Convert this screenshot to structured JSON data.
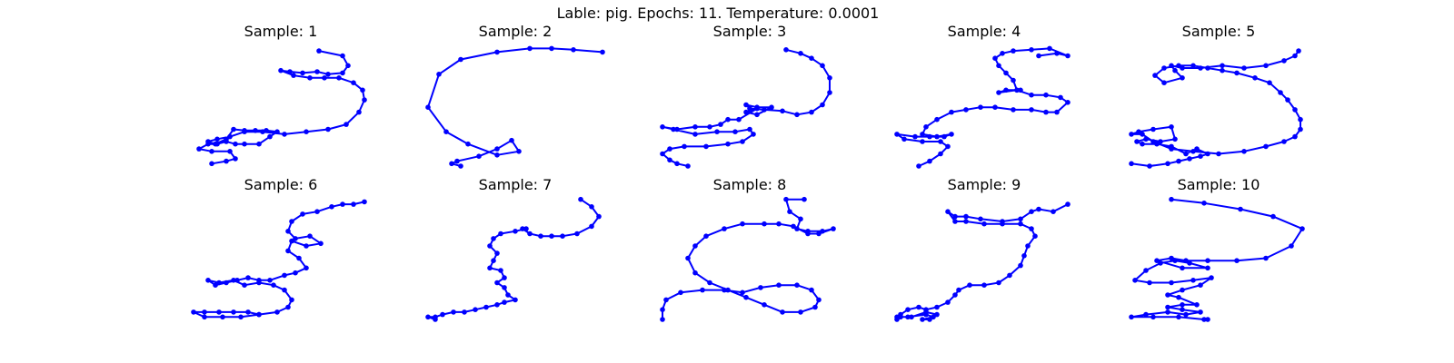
{
  "figure": {
    "title": "Lable: pig. Epochs: 11. Temperature: 0.0001"
  },
  "style": {
    "stroke_color": "#0000ff",
    "marker_color": "#0000ff",
    "background": "#ffffff",
    "axes_visible": false,
    "markers": true
  },
  "chart_data": [
    {
      "type": "line",
      "title": "Sample: 1",
      "xlim": [
        0,
        100
      ],
      "ylim": [
        0,
        100
      ],
      "x": [
        71,
        84,
        87,
        84,
        76,
        70,
        62,
        55,
        50,
        57,
        66,
        74,
        82,
        90,
        95,
        96,
        93,
        86,
        76,
        64,
        52,
        40,
        30,
        22,
        15,
        10,
        14,
        20,
        24,
        30,
        36,
        42,
        48,
        44,
        38,
        30,
        25,
        20,
        15,
        10,
        5,
        12,
        22,
        25,
        20,
        12
      ],
      "y": [
        94,
        90,
        82,
        76,
        75,
        77,
        76,
        77,
        78,
        74,
        72,
        72,
        72,
        68,
        62,
        54,
        44,
        34,
        30,
        28,
        26,
        28,
        28,
        24,
        22,
        20,
        18,
        22,
        30,
        29,
        29,
        29,
        28,
        24,
        18,
        18,
        18,
        20,
        18,
        18,
        14,
        12,
        12,
        6,
        4,
        2
      ]
    },
    {
      "type": "line",
      "title": "Sample: 2",
      "xlim": [
        0,
        100
      ],
      "ylim": [
        0,
        100
      ],
      "x": [
        98,
        82,
        70,
        58,
        40,
        20,
        8,
        2,
        12,
        24,
        40,
        52,
        48,
        40,
        30,
        18,
        15,
        20
      ],
      "y": [
        93,
        95,
        96,
        96,
        93,
        87,
        75,
        48,
        28,
        18,
        9,
        12,
        21,
        14,
        8,
        4,
        2,
        0
      ]
    },
    {
      "type": "line",
      "title": "Sample: 3",
      "xlim": [
        0,
        100
      ],
      "ylim": [
        0,
        100
      ],
      "x": [
        70,
        78,
        84,
        90,
        94,
        94,
        90,
        84,
        76,
        68,
        58,
        50,
        48,
        54,
        62,
        54,
        48,
        54,
        44,
        38,
        34,
        28,
        20,
        10,
        2,
        8,
        20,
        32,
        42,
        50,
        52,
        46,
        38,
        26,
        14,
        6,
        2,
        6,
        10,
        16
      ],
      "y": [
        95,
        92,
        88,
        82,
        72,
        60,
        50,
        44,
        42,
        45,
        46,
        47,
        50,
        48,
        48,
        42,
        44,
        47,
        38,
        38,
        34,
        32,
        32,
        30,
        32,
        30,
        26,
        28,
        28,
        30,
        26,
        20,
        18,
        16,
        16,
        14,
        10,
        5,
        2,
        0
      ]
    },
    {
      "type": "line",
      "title": "Sample: 4",
      "xlim": [
        0,
        100
      ],
      "ylim": [
        0,
        100
      ],
      "x": [
        80,
        90,
        96,
        86,
        76,
        66,
        60,
        56,
        58,
        62,
        66,
        68,
        70,
        62,
        58,
        68,
        76,
        84,
        92,
        96,
        90,
        84,
        76,
        66,
        56,
        48,
        40,
        32,
        24,
        18,
        16,
        24,
        32,
        28,
        20,
        12,
        2,
        6,
        16,
        26,
        30,
        26,
        20,
        14
      ],
      "y": [
        90,
        92,
        90,
        96,
        95,
        94,
        92,
        88,
        82,
        76,
        70,
        62,
        62,
        62,
        60,
        62,
        58,
        58,
        56,
        52,
        44,
        44,
        46,
        46,
        48,
        48,
        46,
        44,
        38,
        32,
        26,
        24,
        26,
        24,
        24,
        24,
        26,
        22,
        20,
        20,
        16,
        10,
        4,
        0
      ]
    },
    {
      "type": "line",
      "title": "Sample: 5",
      "xlim": [
        0,
        100
      ],
      "ylim": [
        0,
        100
      ],
      "x": [
        94,
        92,
        86,
        76,
        64,
        52,
        40,
        30,
        24,
        26,
        30,
        20,
        15,
        20,
        28,
        36,
        44,
        52,
        60,
        70,
        78,
        84,
        88,
        92,
        95,
        95,
        92,
        86,
        76,
        64,
        50,
        36,
        24,
        14,
        8,
        2,
        6,
        14,
        24,
        26,
        18,
        10,
        5,
        8,
        16,
        24,
        32,
        38,
        44,
        40,
        34,
        28,
        22,
        12,
        2
      ],
      "y": [
        94,
        90,
        86,
        82,
        80,
        82,
        80,
        80,
        82,
        78,
        72,
        68,
        74,
        80,
        82,
        82,
        80,
        78,
        76,
        72,
        68,
        60,
        54,
        46,
        38,
        30,
        24,
        20,
        16,
        12,
        10,
        12,
        14,
        20,
        26,
        26,
        28,
        30,
        32,
        22,
        20,
        22,
        20,
        18,
        18,
        16,
        10,
        14,
        10,
        8,
        6,
        4,
        2,
        0,
        2
      ]
    },
    {
      "type": "line",
      "title": "Sample: 6",
      "xlim": [
        0,
        100
      ],
      "ylim": [
        0,
        100
      ],
      "x": [
        96,
        90,
        84,
        78,
        70,
        62,
        56,
        54,
        58,
        66,
        72,
        64,
        56,
        54,
        60,
        64,
        58,
        52,
        44,
        38,
        32,
        26,
        20,
        14,
        10,
        16,
        24,
        30,
        38,
        46,
        52,
        56,
        54,
        48,
        38,
        28,
        18,
        8,
        2,
        8,
        16,
        24,
        32,
        38
      ],
      "y": [
        96,
        94,
        94,
        92,
        88,
        86,
        80,
        72,
        66,
        68,
        62,
        60,
        64,
        56,
        50,
        42,
        38,
        36,
        32,
        32,
        34,
        32,
        30,
        28,
        32,
        30,
        32,
        28,
        30,
        28,
        24,
        16,
        10,
        6,
        4,
        2,
        2,
        2,
        6,
        6,
        6,
        6,
        6,
        4
      ]
    },
    {
      "type": "line",
      "title": "Sample: 7",
      "xlim": [
        0,
        100
      ],
      "ylim": [
        0,
        100
      ],
      "x": [
        86,
        92,
        96,
        92,
        84,
        76,
        70,
        64,
        58,
        54,
        56,
        50,
        42,
        38,
        36,
        40,
        38,
        36,
        42,
        44,
        40,
        44,
        46,
        50,
        44,
        40,
        34,
        28,
        22,
        16,
        10,
        6,
        2,
        6
      ],
      "y": [
        98,
        92,
        84,
        76,
        70,
        68,
        68,
        68,
        70,
        74,
        74,
        72,
        70,
        66,
        60,
        54,
        48,
        42,
        40,
        34,
        30,
        26,
        20,
        16,
        14,
        12,
        10,
        8,
        6,
        6,
        4,
        2,
        2,
        0
      ]
    },
    {
      "type": "line",
      "title": "Sample: 8",
      "xlim": [
        0,
        100
      ],
      "ylim": [
        0,
        100
      ],
      "x": [
        80,
        70,
        72,
        78,
        76,
        82,
        90,
        96,
        88,
        82,
        74,
        66,
        58,
        46,
        36,
        26,
        20,
        16,
        20,
        28,
        38,
        48,
        58,
        68,
        78,
        86,
        88,
        84,
        76,
        66,
        56,
        46,
        36,
        24,
        12,
        4,
        2,
        2
      ],
      "y": [
        98,
        98,
        88,
        82,
        74,
        72,
        72,
        74,
        70,
        70,
        76,
        78,
        78,
        78,
        74,
        68,
        60,
        50,
        38,
        30,
        24,
        18,
        12,
        6,
        6,
        10,
        16,
        24,
        28,
        28,
        26,
        22,
        24,
        24,
        22,
        16,
        8,
        0
      ]
    },
    {
      "type": "line",
      "title": "Sample: 9",
      "xlim": [
        0,
        100
      ],
      "ylim": [
        0,
        100
      ],
      "x": [
        96,
        88,
        80,
        76,
        70,
        60,
        48,
        40,
        34,
        30,
        34,
        40,
        50,
        60,
        70,
        76,
        78,
        74,
        72,
        70,
        64,
        58,
        50,
        42,
        36,
        34,
        30,
        24,
        18,
        14,
        8,
        4,
        2,
        8,
        18,
        22,
        16,
        20,
        24,
        18,
        10,
        4,
        2
      ],
      "y": [
        94,
        88,
        90,
        88,
        82,
        80,
        82,
        84,
        84,
        88,
        80,
        80,
        78,
        78,
        78,
        74,
        68,
        60,
        52,
        44,
        36,
        30,
        28,
        28,
        24,
        20,
        14,
        10,
        8,
        10,
        8,
        4,
        2,
        2,
        4,
        2,
        0,
        0,
        4,
        6,
        2,
        2,
        0
      ]
    },
    {
      "type": "line",
      "title": "Sample: 10",
      "xlim": [
        0,
        100
      ],
      "ylim": [
        0,
        100
      ],
      "x": [
        24,
        42,
        62,
        80,
        96,
        90,
        76,
        60,
        44,
        32,
        24,
        16,
        30,
        44,
        34,
        26,
        18,
        10,
        4,
        12,
        24,
        36,
        46,
        40,
        30,
        22,
        28,
        38,
        30,
        22,
        30,
        40,
        32,
        22,
        10,
        2,
        14,
        28,
        42,
        44
      ],
      "y": [
        98,
        95,
        90,
        84,
        74,
        60,
        50,
        48,
        48,
        48,
        50,
        48,
        42,
        42,
        46,
        48,
        46,
        40,
        32,
        30,
        30,
        32,
        34,
        28,
        24,
        20,
        18,
        12,
        12,
        10,
        8,
        6,
        4,
        6,
        4,
        2,
        2,
        2,
        0,
        0
      ]
    }
  ]
}
